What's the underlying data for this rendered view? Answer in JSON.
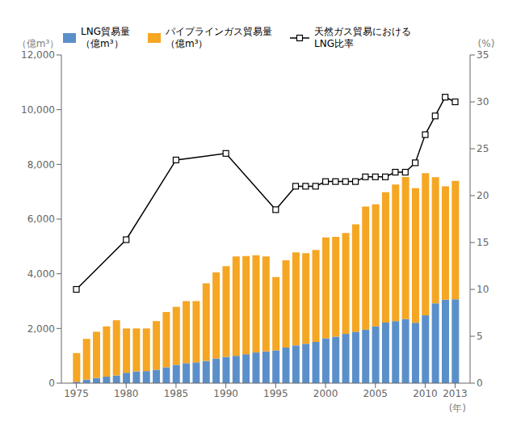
{
  "chart_data": {
    "type": "bar",
    "stacked": true,
    "grid": false,
    "legend": "top",
    "ylabel": "（億m³）",
    "y2label": "(%)",
    "xlabel": "(年)",
    "x": [
      1975,
      1976,
      1977,
      1978,
      1979,
      1980,
      1981,
      1982,
      1983,
      1984,
      1985,
      1986,
      1987,
      1988,
      1989,
      1990,
      1991,
      1992,
      1993,
      1994,
      1995,
      1996,
      1997,
      1998,
      1999,
      2000,
      2001,
      2002,
      2003,
      2004,
      2005,
      2006,
      2007,
      2008,
      2009,
      2010,
      2011,
      2012,
      2013
    ],
    "xlim": [
      1973.5,
      2014.5
    ],
    "xticks": [
      1975,
      1980,
      1985,
      1990,
      1995,
      2000,
      2005,
      2010,
      2013
    ],
    "ylim": [
      0,
      12000
    ],
    "yticks": [
      0,
      {
        "value": 2000,
        "label": "2,000"
      },
      {
        "value": 4000,
        "label": "4,000"
      },
      {
        "value": 6000,
        "label": "6,000"
      },
      {
        "value": 8000,
        "label": "8,000"
      },
      {
        "value": 10000,
        "label": "10,000"
      },
      {
        "value": 12000,
        "label": "12,000"
      }
    ],
    "y2lim": [
      0,
      35
    ],
    "y2ticks": [
      0,
      5,
      10,
      15,
      20,
      25,
      30,
      35
    ],
    "series": [
      {
        "name": "LNG貿易量\n（億m³）",
        "type": "bar",
        "color": "#5b8fc9",
        "values": [
          50,
          130,
          190,
          240,
          280,
          380,
          430,
          440,
          490,
          580,
          670,
          730,
          760,
          810,
          900,
          960,
          1000,
          1060,
          1120,
          1160,
          1200,
          1300,
          1380,
          1440,
          1510,
          1640,
          1700,
          1800,
          1880,
          1960,
          2080,
          2220,
          2270,
          2340,
          2210,
          2480,
          2920,
          3050,
          3070
        ]
      },
      {
        "name": "パイプラインガス貿易量\n（億m³）",
        "type": "bar",
        "color": "#f5a623",
        "values": [
          1050,
          1490,
          1690,
          1840,
          2020,
          1620,
          1570,
          1560,
          1780,
          2020,
          2120,
          2270,
          2240,
          2840,
          3150,
          3320,
          3630,
          3590,
          3560,
          3470,
          2680,
          3190,
          3400,
          3310,
          3360,
          3690,
          3650,
          3690,
          3930,
          4500,
          4460,
          4760,
          4990,
          5200,
          4920,
          5200,
          4610,
          4150,
          4330
        ]
      },
      {
        "name": "天然ガス貿易における\nLNG比率",
        "type": "line",
        "axis": "y2",
        "color": "#000000",
        "marker": "square",
        "line_style": "solid",
        "x": [
          1975,
          1980,
          1985,
          1990,
          1995,
          1997,
          1998,
          1999,
          2000,
          2001,
          2002,
          2003,
          2004,
          2005,
          2006,
          2007,
          2008,
          2009,
          2010,
          2011,
          2012,
          2013
        ],
        "values": [
          10.0,
          15.3,
          23.8,
          24.5,
          18.5,
          21.0,
          21.0,
          21.0,
          21.5,
          21.5,
          21.5,
          21.5,
          22.0,
          22.0,
          22.0,
          22.5,
          22.5,
          23.5,
          26.5,
          28.5,
          30.5,
          30.0
        ]
      }
    ]
  }
}
